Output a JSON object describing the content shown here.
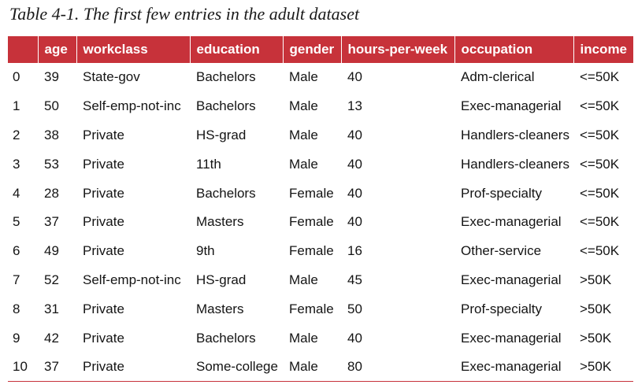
{
  "caption": "Table 4-1. The first few entries in the adult dataset",
  "table": {
    "columns": [
      "",
      "age",
      "workclass",
      "education",
      "gender",
      "hours-per-week",
      "occupation",
      "income"
    ],
    "rows": [
      [
        "0",
        "39",
        "State-gov",
        "Bachelors",
        "Male",
        "40",
        "Adm-clerical",
        "<=50K"
      ],
      [
        "1",
        "50",
        "Self-emp-not-inc",
        "Bachelors",
        "Male",
        "13",
        "Exec-managerial",
        "<=50K"
      ],
      [
        "2",
        "38",
        "Private",
        "HS-grad",
        "Male",
        "40",
        "Handlers-cleaners",
        "<=50K"
      ],
      [
        "3",
        "53",
        "Private",
        "11th",
        "Male",
        "40",
        "Handlers-cleaners",
        "<=50K"
      ],
      [
        "4",
        "28",
        "Private",
        "Bachelors",
        "Female",
        "40",
        "Prof-specialty",
        "<=50K"
      ],
      [
        "5",
        "37",
        "Private",
        "Masters",
        "Female",
        "40",
        "Exec-managerial",
        "<=50K"
      ],
      [
        "6",
        "49",
        "Private",
        "9th",
        "Female",
        "16",
        "Other-service",
        "<=50K"
      ],
      [
        "7",
        "52",
        "Self-emp-not-inc",
        "HS-grad",
        "Male",
        "45",
        "Exec-managerial",
        ">50K"
      ],
      [
        "8",
        "31",
        "Private",
        "Masters",
        "Female",
        "50",
        "Prof-specialty",
        ">50K"
      ],
      [
        "9",
        "42",
        "Private",
        "Bachelors",
        "Male",
        "40",
        "Exec-managerial",
        ">50K"
      ],
      [
        "10",
        "37",
        "Private",
        "Some-college",
        "Male",
        "80",
        "Exec-managerial",
        ">50K"
      ]
    ]
  },
  "colors": {
    "header_background": "#c7323a",
    "header_text": "#ffffff"
  }
}
